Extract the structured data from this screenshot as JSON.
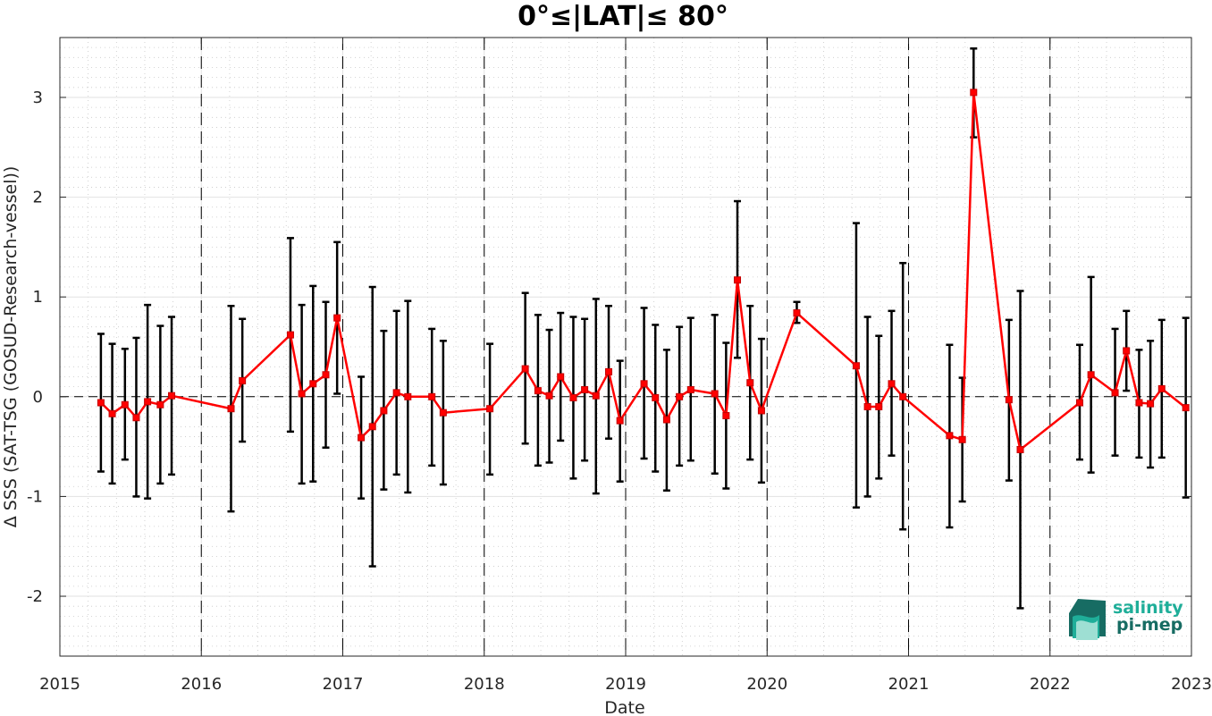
{
  "chart_data": {
    "type": "line",
    "title": "0°≤|LAT|≤ 80°",
    "xlabel": "Date",
    "ylabel": "Δ SSS (SAT-TSG (GOSUD-Research-vessel))",
    "xlim": [
      2015.0,
      2023.0
    ],
    "ylim": [
      -2.6,
      3.6
    ],
    "x_ticks": [
      2015,
      2016,
      2017,
      2018,
      2019,
      2020,
      2021,
      2022,
      2023
    ],
    "x_tick_labels": [
      "2015",
      "2016",
      "2017",
      "2018",
      "2019",
      "2020",
      "2021",
      "2022",
      "2023"
    ],
    "y_ticks": [
      -2,
      -1,
      0,
      1,
      2,
      3
    ],
    "y_tick_labels": [
      "-2",
      "-1",
      "0",
      "1",
      "2",
      "3"
    ],
    "grid": true,
    "year_dividers": [
      2016,
      2017,
      2018,
      2019,
      2020,
      2021,
      2022
    ],
    "zero_line": 0,
    "series": [
      {
        "color": "#ff0000",
        "errorbar_color": "#000000",
        "points": [
          {
            "x": 2015.29,
            "y": -0.06,
            "low": -0.75,
            "high": 0.63
          },
          {
            "x": 2015.37,
            "y": -0.17,
            "low": -0.87,
            "high": 0.53
          },
          {
            "x": 2015.46,
            "y": -0.08,
            "low": -0.63,
            "high": 0.48
          },
          {
            "x": 2015.54,
            "y": -0.21,
            "low": -1.0,
            "high": 0.59
          },
          {
            "x": 2015.62,
            "y": -0.05,
            "low": -1.02,
            "high": 0.92
          },
          {
            "x": 2015.71,
            "y": -0.08,
            "low": -0.87,
            "high": 0.71
          },
          {
            "x": 2015.79,
            "y": 0.01,
            "low": -0.78,
            "high": 0.8
          },
          {
            "x": 2016.21,
            "y": -0.12,
            "low": -1.15,
            "high": 0.91
          },
          {
            "x": 2016.29,
            "y": 0.16,
            "low": -0.45,
            "high": 0.78
          },
          {
            "x": 2016.63,
            "y": 0.62,
            "low": -0.35,
            "high": 1.59
          },
          {
            "x": 2016.71,
            "y": 0.03,
            "low": -0.87,
            "high": 0.92
          },
          {
            "x": 2016.79,
            "y": 0.13,
            "low": -0.85,
            "high": 1.11
          },
          {
            "x": 2016.88,
            "y": 0.22,
            "low": -0.51,
            "high": 0.95
          },
          {
            "x": 2016.96,
            "y": 0.79,
            "low": 0.03,
            "high": 1.55
          },
          {
            "x": 2017.13,
            "y": -0.41,
            "low": -1.02,
            "high": 0.2
          },
          {
            "x": 2017.21,
            "y": -0.3,
            "low": -1.7,
            "high": 1.1
          },
          {
            "x": 2017.29,
            "y": -0.14,
            "low": -0.93,
            "high": 0.66
          },
          {
            "x": 2017.38,
            "y": 0.04,
            "low": -0.78,
            "high": 0.86
          },
          {
            "x": 2017.46,
            "y": 0.0,
            "low": -0.96,
            "high": 0.96
          },
          {
            "x": 2017.63,
            "y": 0.0,
            "low": -0.69,
            "high": 0.68
          },
          {
            "x": 2017.71,
            "y": -0.16,
            "low": -0.88,
            "high": 0.56
          },
          {
            "x": 2018.04,
            "y": -0.12,
            "low": -0.78,
            "high": 0.53
          },
          {
            "x": 2018.29,
            "y": 0.28,
            "low": -0.47,
            "high": 1.04
          },
          {
            "x": 2018.38,
            "y": 0.06,
            "low": -0.69,
            "high": 0.82
          },
          {
            "x": 2018.46,
            "y": 0.01,
            "low": -0.66,
            "high": 0.67
          },
          {
            "x": 2018.54,
            "y": 0.2,
            "low": -0.44,
            "high": 0.84
          },
          {
            "x": 2018.63,
            "y": -0.01,
            "low": -0.82,
            "high": 0.8
          },
          {
            "x": 2018.71,
            "y": 0.07,
            "low": -0.64,
            "high": 0.78
          },
          {
            "x": 2018.79,
            "y": 0.01,
            "low": -0.97,
            "high": 0.98
          },
          {
            "x": 2018.88,
            "y": 0.25,
            "low": -0.42,
            "high": 0.91
          },
          {
            "x": 2018.96,
            "y": -0.24,
            "low": -0.85,
            "high": 0.36
          },
          {
            "x": 2019.13,
            "y": 0.13,
            "low": -0.62,
            "high": 0.89
          },
          {
            "x": 2019.21,
            "y": -0.01,
            "low": -0.75,
            "high": 0.72
          },
          {
            "x": 2019.29,
            "y": -0.23,
            "low": -0.94,
            "high": 0.47
          },
          {
            "x": 2019.38,
            "y": 0.0,
            "low": -0.69,
            "high": 0.7
          },
          {
            "x": 2019.46,
            "y": 0.07,
            "low": -0.64,
            "high": 0.79
          },
          {
            "x": 2019.63,
            "y": 0.03,
            "low": -0.77,
            "high": 0.82
          },
          {
            "x": 2019.71,
            "y": -0.19,
            "low": -0.92,
            "high": 0.54
          },
          {
            "x": 2019.79,
            "y": 1.17,
            "low": 0.39,
            "high": 1.96
          },
          {
            "x": 2019.88,
            "y": 0.14,
            "low": -0.63,
            "high": 0.91
          },
          {
            "x": 2019.96,
            "y": -0.14,
            "low": -0.86,
            "high": 0.58
          },
          {
            "x": 2020.21,
            "y": 0.84,
            "low": 0.74,
            "high": 0.95
          },
          {
            "x": 2020.63,
            "y": 0.31,
            "low": -1.11,
            "high": 1.74
          },
          {
            "x": 2020.71,
            "y": -0.1,
            "low": -1.0,
            "high": 0.8
          },
          {
            "x": 2020.79,
            "y": -0.1,
            "low": -0.82,
            "high": 0.61
          },
          {
            "x": 2020.88,
            "y": 0.13,
            "low": -0.59,
            "high": 0.86
          },
          {
            "x": 2020.96,
            "y": 0.0,
            "low": -1.33,
            "high": 1.34
          },
          {
            "x": 2021.29,
            "y": -0.39,
            "low": -1.31,
            "high": 0.52
          },
          {
            "x": 2021.38,
            "y": -0.43,
            "low": -1.05,
            "high": 0.19
          },
          {
            "x": 2021.46,
            "y": 3.05,
            "low": 2.6,
            "high": 3.49
          },
          {
            "x": 2021.71,
            "y": -0.03,
            "low": -0.84,
            "high": 0.77
          },
          {
            "x": 2021.79,
            "y": -0.53,
            "low": -2.12,
            "high": 1.06
          },
          {
            "x": 2022.21,
            "y": -0.06,
            "low": -0.63,
            "high": 0.52
          },
          {
            "x": 2022.29,
            "y": 0.22,
            "low": -0.76,
            "high": 1.2
          },
          {
            "x": 2022.46,
            "y": 0.04,
            "low": -0.59,
            "high": 0.68
          },
          {
            "x": 2022.54,
            "y": 0.46,
            "low": 0.06,
            "high": 0.86
          },
          {
            "x": 2022.63,
            "y": -0.06,
            "low": -0.61,
            "high": 0.47
          },
          {
            "x": 2022.71,
            "y": -0.07,
            "low": -0.71,
            "high": 0.56
          },
          {
            "x": 2022.79,
            "y": 0.08,
            "low": -0.61,
            "high": 0.77
          },
          {
            "x": 2022.96,
            "y": -0.11,
            "low": -1.01,
            "high": 0.79
          }
        ]
      }
    ]
  },
  "logo": {
    "line1": "salinity",
    "line2": "pi-mep",
    "color_light": "#1fae99",
    "color_dark": "#176c63"
  }
}
